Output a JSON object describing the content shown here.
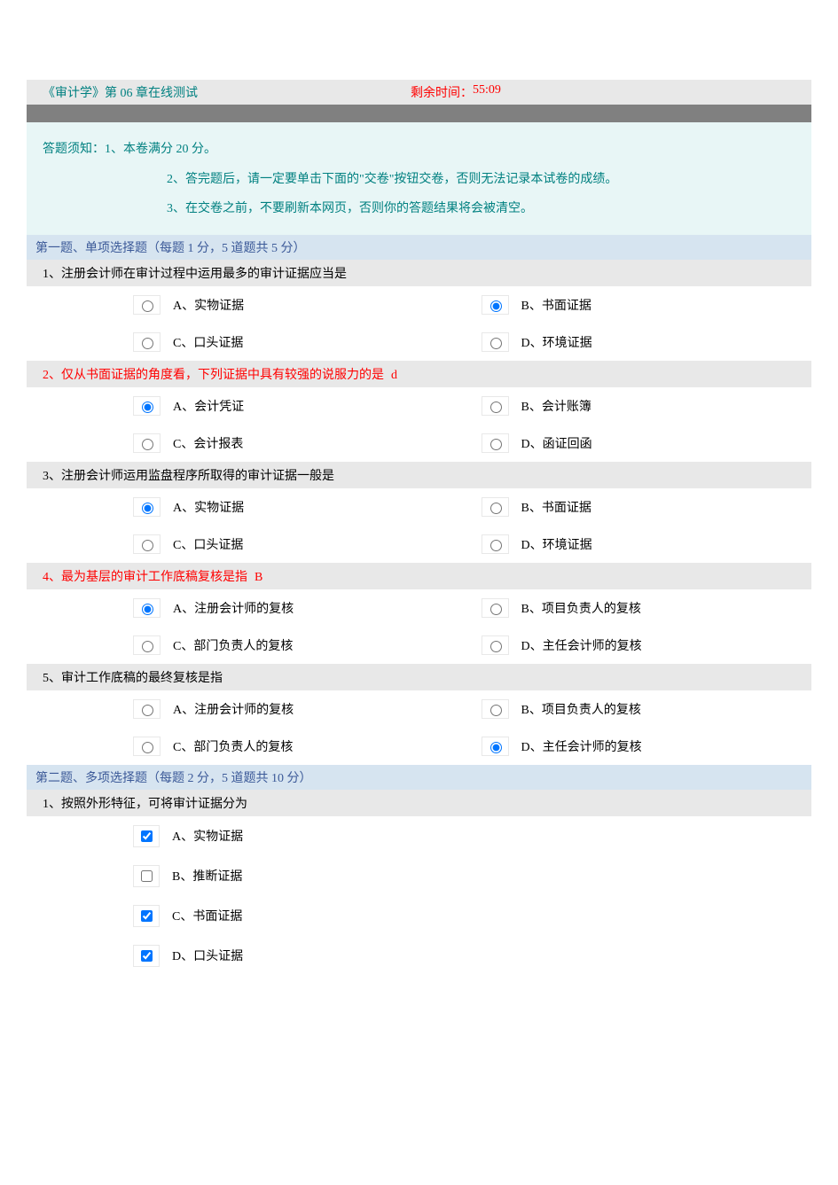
{
  "header": {
    "title": "《审计学》第 06 章在线测试",
    "timer_label": "剩余时间：",
    "timer_value": "55:09"
  },
  "instructions": {
    "line1": "答题须知：1、本卷满分 20 分。",
    "line2": "2、答完题后，请一定要单击下面的\"交卷\"按钮交卷，否则无法记录本试卷的成绩。",
    "line3": "3、在交卷之前，不要刷新本网页，否则你的答题结果将会被清空。"
  },
  "section1": {
    "header": "第一题、单项选择题（每题 1 分，5 道题共 5 分）",
    "questions": [
      {
        "text": "1、注册会计师在审计过程中运用最多的审计证据应当是",
        "wrong": false,
        "hint": "",
        "opts": {
          "a": "A、实物证据",
          "b": "B、书面证据",
          "c": "C、口头证据",
          "d": "D、环境证据"
        },
        "selected": "b"
      },
      {
        "text": "2、仅从书面证据的角度看，下列证据中具有较强的说服力的是",
        "wrong": true,
        "hint": "d",
        "opts": {
          "a": "A、会计凭证",
          "b": "B、会计账簿",
          "c": "C、会计报表",
          "d": "D、函证回函"
        },
        "selected": "a"
      },
      {
        "text": "3、注册会计师运用监盘程序所取得的审计证据一般是",
        "wrong": false,
        "hint": "",
        "opts": {
          "a": "A、实物证据",
          "b": "B、书面证据",
          "c": "C、口头证据",
          "d": "D、环境证据"
        },
        "selected": "a"
      },
      {
        "text": "4、最为基层的审计工作底稿复核是指",
        "wrong": true,
        "hint": "B",
        "opts": {
          "a": "A、注册会计师的复核",
          "b": "B、项目负责人的复核",
          "c": "C、部门负责人的复核",
          "d": "D、主任会计师的复核"
        },
        "selected": "a"
      },
      {
        "text": "5、审计工作底稿的最终复核是指",
        "wrong": false,
        "hint": "",
        "opts": {
          "a": "A、注册会计师的复核",
          "b": "B、项目负责人的复核",
          "c": "C、部门负责人的复核",
          "d": "D、主任会计师的复核"
        },
        "selected": "d"
      }
    ]
  },
  "section2": {
    "header": "第二题、多项选择题（每题 2 分，5 道题共 10 分）",
    "questions": [
      {
        "text": "1、按照外形特征，可将审计证据分为",
        "opts": [
          {
            "label": "A、实物证据",
            "checked": true
          },
          {
            "label": "B、推断证据",
            "checked": false
          },
          {
            "label": "C、书面证据",
            "checked": true
          },
          {
            "label": "D、口头证据",
            "checked": true
          }
        ]
      }
    ]
  }
}
